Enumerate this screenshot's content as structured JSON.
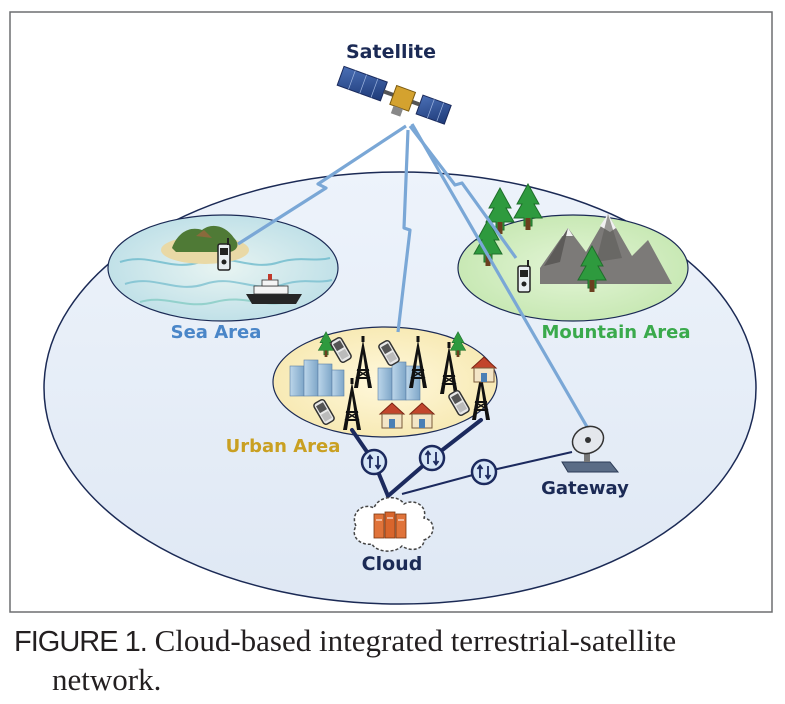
{
  "labels": {
    "satellite": "Satellite",
    "sea_area": "Sea Area",
    "mountain_area": "Mountain Area",
    "urban_area": "Urban Area",
    "gateway": "Gateway",
    "cloud": "Cloud"
  },
  "caption": {
    "figure_number": "FIGURE 1.",
    "text_line1": "Cloud-based integrated terrestrial-satellite",
    "text_line2": "network."
  },
  "colors": {
    "link_blue": "#7aa7d6",
    "backhaul_navy": "#1c2a5e",
    "sea_label": "#4a86c8",
    "mountain_label": "#3aaa4c",
    "urban_label": "#c9a022",
    "dark_label": "#1b2a55",
    "earth_fill": "#e6eef8",
    "urban_fill": "#fbf0c6",
    "mountain_fill": "#d4efc2",
    "sea_fill": "#cde9ee"
  },
  "icons": [
    "satellite-icon",
    "island-icon",
    "ship-icon",
    "handset-icon",
    "tree-icon",
    "mountain-icon",
    "cell-tower-icon",
    "building-icon",
    "house-icon",
    "phone-icon",
    "router-icon",
    "dish-antenna-icon",
    "server-icon"
  ]
}
